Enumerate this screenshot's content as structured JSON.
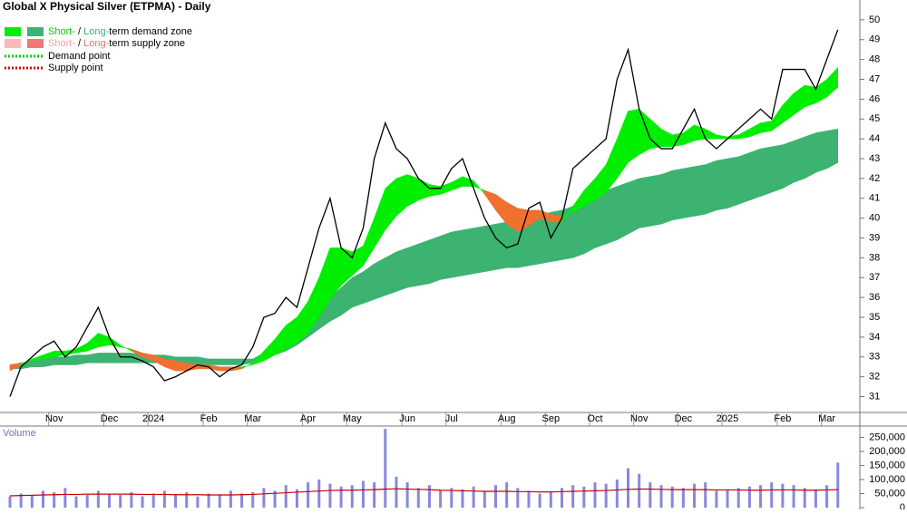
{
  "chart_data": {
    "type": "zone",
    "title": "Global X Physical Silver (ETPMA) - Daily",
    "categories": [
      null,
      null,
      null,
      null,
      "Nov",
      null,
      null,
      null,
      null,
      "Dec",
      null,
      null,
      null,
      "2024",
      null,
      null,
      null,
      null,
      "Feb",
      null,
      null,
      null,
      "Mar",
      null,
      null,
      null,
      null,
      "Apr",
      null,
      null,
      null,
      "May",
      null,
      null,
      null,
      null,
      "Jun",
      null,
      null,
      null,
      "Jul",
      null,
      null,
      null,
      null,
      "Aug",
      null,
      null,
      null,
      "Sep",
      null,
      null,
      null,
      "Oct",
      null,
      null,
      null,
      "Nov",
      null,
      null,
      null,
      "Dec",
      null,
      null,
      null,
      "2025",
      null,
      null,
      null,
      null,
      "Feb",
      null,
      null,
      null,
      "Mar",
      null
    ],
    "ylim": [
      30.2,
      51
    ],
    "yticks": [
      31,
      32,
      33,
      34,
      35,
      36,
      37,
      38,
      39,
      40,
      41,
      42,
      43,
      44,
      45,
      46,
      47,
      48,
      49,
      50
    ],
    "series": [
      {
        "color": "#000000",
        "values": [
          31,
          32.5,
          33,
          33.5,
          33.8,
          33,
          33.5,
          34.5,
          35.5,
          34,
          33,
          33,
          32.8,
          32.5,
          31.8,
          32,
          32.3,
          32.6,
          32.5,
          32,
          32.4,
          32.6,
          33.5,
          35,
          35.2,
          36,
          35.5,
          37.5,
          39.5,
          41,
          38.5,
          38,
          39.5,
          43,
          44.8,
          43.5,
          43,
          42,
          41.5,
          41.5,
          42.5,
          43,
          41.5,
          40,
          39,
          38.5,
          38.7,
          40.5,
          40.8,
          39,
          40,
          42.5,
          43,
          43.5,
          44,
          47,
          48.5,
          45.5,
          44,
          43.5,
          43.5,
          44.5,
          45.5,
          44,
          43.5,
          44,
          44.5,
          45,
          45.5,
          45,
          47.5,
          47.5,
          47.5,
          46.5,
          48,
          49.5
        ]
      }
    ],
    "short_zone": {
      "demand_color": "#00ee00",
      "supply_color": "#f07030",
      "fast": [
        32.3,
        32.6,
        32.9,
        33.1,
        33.3,
        33.3,
        33.4,
        33.7,
        34.2,
        34,
        33.6,
        33.3,
        33,
        32.8,
        32.5,
        32.3,
        32.3,
        32.4,
        32.4,
        32.3,
        32.3,
        32.4,
        32.7,
        33.3,
        33.9,
        34.6,
        35,
        35.8,
        37,
        38.5,
        38.5,
        38.3,
        38.6,
        40,
        41.5,
        42,
        42.2,
        42,
        41.7,
        41.6,
        41.8,
        42.1,
        41.9,
        41.2,
        40.4,
        39.7,
        39.3,
        39.6,
        40,
        39.8,
        39.8,
        40.6,
        41.4,
        42,
        42.7,
        44,
        45.4,
        45.5,
        45,
        44.5,
        44.2,
        44.3,
        44.7,
        44.5,
        44.2,
        44.1,
        44.2,
        44.5,
        44.8,
        44.9,
        45.7,
        46.3,
        46.7,
        46.6,
        47,
        47.6
      ],
      "slow": [
        32.6,
        32.7,
        32.8,
        32.9,
        33,
        33.1,
        33.2,
        33.3,
        33.5,
        33.6,
        33.5,
        33.4,
        33.2,
        33.1,
        32.9,
        32.8,
        32.7,
        32.6,
        32.6,
        32.5,
        32.5,
        32.5,
        32.6,
        32.8,
        33.1,
        33.4,
        33.7,
        34.2,
        35,
        35.9,
        36.6,
        37.1,
        37.6,
        38.5,
        39.4,
        40.1,
        40.6,
        40.9,
        41.1,
        41.2,
        41.4,
        41.6,
        41.6,
        41.4,
        41.2,
        40.8,
        40.5,
        40.4,
        40.4,
        40.2,
        40.1,
        40.3,
        40.6,
        40.9,
        41.3,
        42,
        42.8,
        43.2,
        43.5,
        43.6,
        43.6,
        43.7,
        43.9,
        44,
        44,
        44,
        44,
        44.1,
        44.3,
        44.4,
        44.8,
        45.2,
        45.6,
        45.8,
        46.1,
        46.6
      ]
    },
    "long_zone": {
      "color": "#3cb371",
      "upper": [
        32.6,
        32.7,
        32.8,
        32.9,
        33,
        33,
        33.1,
        33.1,
        33.2,
        33.2,
        33.2,
        33.2,
        33.1,
        33.1,
        33.1,
        33,
        33,
        33,
        32.9,
        32.9,
        32.9,
        32.9,
        32.9,
        33.2,
        33.5,
        33.9,
        34.3,
        35,
        35.5,
        36,
        36.5,
        37,
        37.3,
        37.7,
        38,
        38.3,
        38.5,
        38.7,
        38.9,
        39.1,
        39.3,
        39.4,
        39.5,
        39.6,
        39.7,
        39.8,
        39.9,
        40,
        40.1,
        40.3,
        40.4,
        40.6,
        40.8,
        41.2,
        41.4,
        41.6,
        41.8,
        42,
        42.1,
        42.2,
        42.4,
        42.5,
        42.6,
        42.7,
        42.9,
        43,
        43.1,
        43.3,
        43.5,
        43.6,
        43.7,
        43.9,
        44.1,
        44.3,
        44.4,
        44.5
      ],
      "lower": [
        32.4,
        32.4,
        32.5,
        32.5,
        32.6,
        32.6,
        32.6,
        32.7,
        32.7,
        32.7,
        32.7,
        32.7,
        32.7,
        32.7,
        32.7,
        32.6,
        32.6,
        32.6,
        32.6,
        32.6,
        32.6,
        32.6,
        32.7,
        32.9,
        33.1,
        33.3,
        33.6,
        34,
        34.4,
        34.8,
        35.1,
        35.5,
        35.7,
        35.9,
        36.1,
        36.3,
        36.5,
        36.6,
        36.7,
        36.9,
        37,
        37.1,
        37.2,
        37.3,
        37.4,
        37.5,
        37.5,
        37.6,
        37.7,
        37.8,
        37.9,
        38,
        38.2,
        38.5,
        38.7,
        38.9,
        39.2,
        39.5,
        39.6,
        39.7,
        39.9,
        40,
        40.1,
        40.2,
        40.4,
        40.5,
        40.7,
        40.9,
        41.1,
        41.3,
        41.5,
        41.8,
        42,
        42.3,
        42.5,
        42.8
      ]
    },
    "legend": [
      {
        "parts": [
          "Short-",
          " / ",
          "Long-",
          "term demand zone"
        ]
      },
      {
        "parts": [
          "Short-",
          " / ",
          "Long-",
          "term supply zone"
        ]
      },
      {
        "parts": [
          "Demand point"
        ]
      },
      {
        "parts": [
          "Supply point"
        ]
      }
    ],
    "volume": {
      "label": "Volume",
      "color": "#8888dd",
      "ma_color": "#cc0000",
      "ylim": [
        0,
        290000
      ],
      "yticks": [
        0,
        {
          "value": 50000,
          "label": "50,000"
        },
        {
          "value": 100000,
          "label": "100,000"
        },
        {
          "value": 150000,
          "label": "150,000"
        },
        {
          "value": 200000,
          "label": "200,000"
        },
        {
          "value": 250000,
          "label": "250,000"
        }
      ],
      "values": [
        40000,
        50000,
        45000,
        60000,
        55000,
        70000,
        40000,
        45000,
        60000,
        50000,
        45000,
        55000,
        40000,
        50000,
        60000,
        45000,
        55000,
        40000,
        50000,
        45000,
        60000,
        50000,
        55000,
        70000,
        60000,
        80000,
        65000,
        90000,
        100000,
        85000,
        75000,
        80000,
        95000,
        90000,
        280000,
        110000,
        90000,
        70000,
        80000,
        60000,
        70000,
        65000,
        75000,
        60000,
        80000,
        90000,
        70000,
        60000,
        50000,
        55000,
        70000,
        80000,
        75000,
        90000,
        85000,
        100000,
        140000,
        120000,
        90000,
        80000,
        75000,
        70000,
        85000,
        90000,
        60000,
        65000,
        70000,
        75000,
        80000,
        90000,
        85000,
        80000,
        70000,
        65000,
        80000,
        160000
      ],
      "ma": [
        42000,
        43000,
        44000,
        45000,
        46000,
        47000,
        47000,
        48000,
        48000,
        48000,
        48000,
        48000,
        47000,
        47000,
        47000,
        46000,
        46000,
        46000,
        45000,
        45000,
        45000,
        46000,
        47000,
        49000,
        51000,
        53000,
        55000,
        57000,
        59000,
        61000,
        62000,
        62000,
        63000,
        64000,
        66000,
        67000,
        66000,
        65000,
        64000,
        62000,
        61000,
        60000,
        59000,
        58000,
        58000,
        58000,
        57000,
        57000,
        56000,
        56000,
        57000,
        58000,
        59000,
        60000,
        61000,
        63000,
        65000,
        66000,
        66000,
        65000,
        64000,
        64000,
        64000,
        64000,
        63000,
        63000,
        63000,
        62000,
        62000,
        63000,
        63000,
        63000,
        62000,
        62000,
        63000,
        64000
      ]
    }
  }
}
